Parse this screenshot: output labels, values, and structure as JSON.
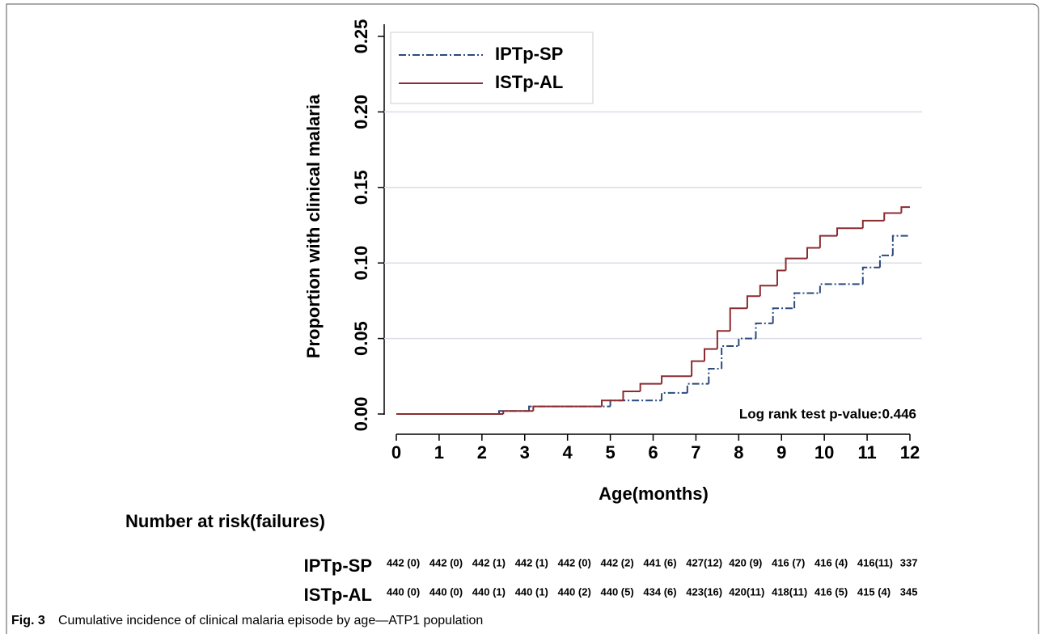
{
  "chart_data": {
    "type": "step",
    "ylabel": "Proportion with clinical malaria",
    "xlabel": "Age(months)",
    "annotation": "Log rank test p-value:0.446",
    "xlim": [
      0,
      12
    ],
    "xticks": [
      0,
      1,
      2,
      3,
      4,
      5,
      6,
      7,
      8,
      9,
      10,
      11,
      12
    ],
    "ylim": [
      0,
      0.25
    ],
    "yticks": [
      {
        "value": 0,
        "label": "0.00"
      },
      {
        "value": 0.05,
        "label": "0.05"
      },
      {
        "value": 0.1,
        "label": "0.10"
      },
      {
        "value": 0.15,
        "label": "0.15"
      },
      {
        "value": 0.2,
        "label": "0.20"
      },
      {
        "value": 0.25,
        "label": "0.25"
      }
    ],
    "grid": true,
    "legend": "upper left",
    "series": [
      {
        "name": "IPTp-SP",
        "color": "#2b4a7e",
        "dash": "dashdot",
        "x": [
          0,
          2.4,
          3.1,
          5.0,
          6.2,
          6.8,
          7.3,
          7.6,
          8.0,
          8.4,
          8.8,
          9.3,
          9.9,
          10.9,
          11.3,
          11.6,
          12
        ],
        "values": [
          0,
          0.002,
          0.005,
          0.009,
          0.014,
          0.02,
          0.03,
          0.045,
          0.05,
          0.06,
          0.07,
          0.08,
          0.086,
          0.097,
          0.105,
          0.118,
          0.118
        ]
      },
      {
        "name": "ISTp-AL",
        "color": "#8b2b30",
        "dash": "solid",
        "x": [
          0,
          2.5,
          3.2,
          4.8,
          5.3,
          5.7,
          6.2,
          6.9,
          7.2,
          7.5,
          7.8,
          8.2,
          8.5,
          8.9,
          9.1,
          9.6,
          9.9,
          10.3,
          10.9,
          11.4,
          11.8,
          12
        ],
        "values": [
          0,
          0.002,
          0.005,
          0.009,
          0.015,
          0.02,
          0.025,
          0.035,
          0.043,
          0.055,
          0.07,
          0.078,
          0.085,
          0.095,
          0.103,
          0.11,
          0.118,
          0.123,
          0.128,
          0.133,
          0.137,
          0.137
        ]
      }
    ]
  },
  "risk_table": {
    "title": "Number at risk(failures)",
    "rows": [
      {
        "label": "IPTp-SP",
        "cells": [
          "442 (0)",
          "442 (0)",
          "442 (1)",
          "442 (1)",
          "442 (0)",
          "442 (2)",
          "441 (6)",
          "427(12)",
          "420 (9)",
          "416 (7)",
          "416 (4)",
          "416(11)",
          "337"
        ]
      },
      {
        "label": "ISTp-AL",
        "cells": [
          "440 (0)",
          "440 (0)",
          "440 (1)",
          "440 (1)",
          "440 (2)",
          "440 (5)",
          "434 (6)",
          "423(16)",
          "420(11)",
          "418(11)",
          "416 (5)",
          "415 (4)",
          "345"
        ]
      }
    ]
  },
  "caption": {
    "label": "Fig. 3",
    "text": "Cumulative incidence of clinical malaria episode by age—ATP1 population"
  }
}
